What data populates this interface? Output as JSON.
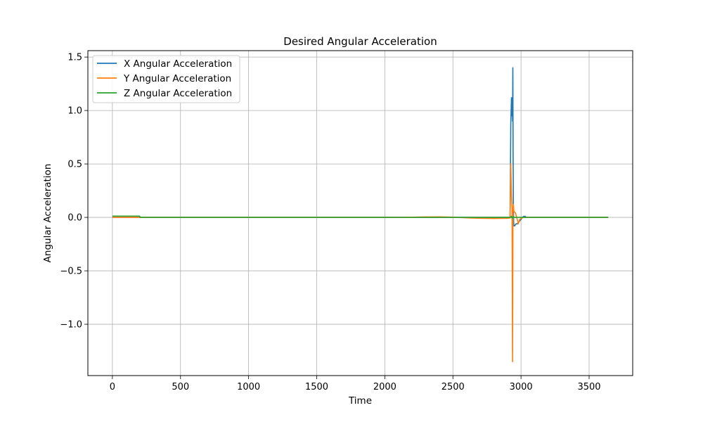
{
  "chart_data": {
    "type": "line",
    "title": "Desired Angular Acceleration",
    "xlabel": "Time",
    "ylabel": "Angular Acceleration",
    "xlim": [
      -180,
      3820
    ],
    "ylim": [
      -1.48,
      1.56
    ],
    "x_ticks": [
      0,
      500,
      1000,
      1500,
      2000,
      2500,
      3000,
      3500
    ],
    "x_tick_labels": [
      "0",
      "500",
      "1000",
      "1500",
      "2000",
      "2500",
      "3000",
      "3500"
    ],
    "y_ticks": [
      -1.0,
      -0.5,
      0.0,
      0.5,
      1.0,
      1.5
    ],
    "y_tick_labels": [
      "−1.0",
      "−0.5",
      "0.0",
      "0.5",
      "1.0",
      "1.5"
    ],
    "grid": true,
    "legend_position": "upper-left",
    "series": [
      {
        "name": "X Angular Acceleration",
        "color": "#1f77b4",
        "x": [
          0,
          200,
          205,
          2910,
          2920,
          2925,
          2930,
          2933,
          2936,
          2938,
          2940,
          2942,
          2944,
          2946,
          2948,
          2952,
          2958,
          2965,
          2975,
          2985,
          3000,
          3010,
          3020,
          3030,
          3040,
          3640
        ],
        "y": [
          0.0,
          0.0,
          0.0,
          0.0,
          0.0,
          0.88,
          1.12,
          0.95,
          1.12,
          0.9,
          1.4,
          0.6,
          0.1,
          -0.05,
          -0.08,
          -0.08,
          -0.07,
          -0.06,
          -0.06,
          -0.04,
          -0.02,
          0.0,
          0.01,
          0.01,
          0.0,
          0.0
        ]
      },
      {
        "name": "Y Angular Acceleration",
        "color": "#ff7f0e",
        "x": [
          0,
          200,
          205,
          2100,
          2200,
          2300,
          2400,
          2500,
          2600,
          2700,
          2800,
          2900,
          2920,
          2925,
          2930,
          2934,
          2938,
          2941,
          2944,
          2947,
          2952,
          2960,
          2968,
          2975,
          2980,
          2990,
          3010,
          3040,
          3640
        ],
        "y": [
          0.0,
          0.0,
          0.0,
          0.0,
          0.002,
          0.004,
          0.005,
          0.002,
          -0.004,
          -0.008,
          -0.01,
          -0.008,
          -0.005,
          0.5,
          0.2,
          0.1,
          -1.35,
          0.05,
          0.12,
          0.06,
          0.05,
          0.04,
          0.0,
          -0.03,
          -0.06,
          -0.02,
          0.0,
          0.0,
          0.0
        ]
      },
      {
        "name": "Z Angular Acceleration",
        "color": "#2ca02c",
        "x": [
          0,
          200,
          205,
          2925,
          2930,
          2935,
          2940,
          2950,
          2960,
          3000,
          3640
        ],
        "y": [
          0.012,
          0.012,
          0.0,
          0.0,
          0.01,
          -0.01,
          0.005,
          0.0,
          0.0,
          0.0,
          0.0
        ]
      }
    ]
  }
}
